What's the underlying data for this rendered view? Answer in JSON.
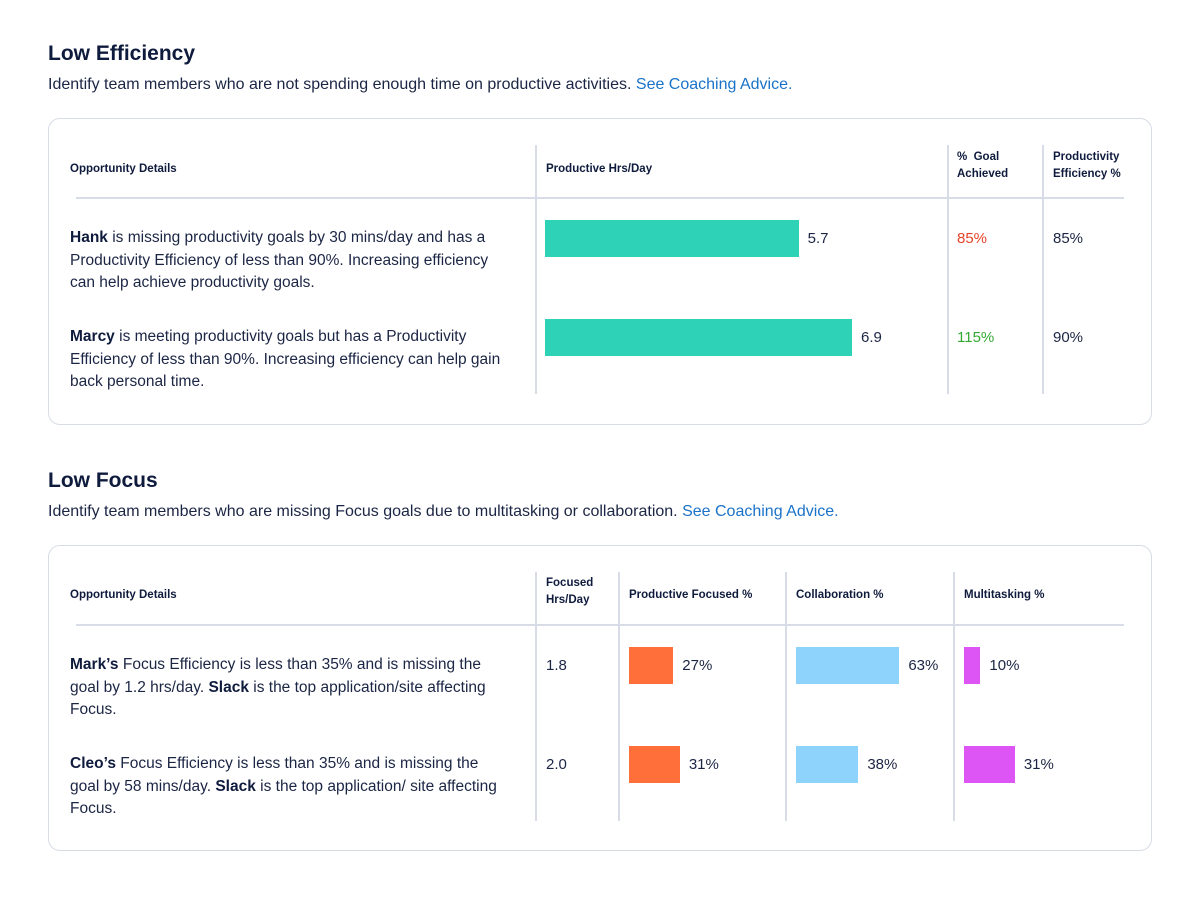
{
  "efficiency": {
    "title": "Low Efficiency",
    "description": "Identify team members who are not spending enough time on productive activities.",
    "link": "See Coaching Advice.",
    "headers": {
      "details": "Opportunity Details",
      "productive": "Productive Hrs/Day",
      "goal_line1": "%  Goal",
      "goal_line2": "Achieved",
      "eff_line1": "Productivity",
      "eff_line2": "Efficiency %"
    },
    "rows": [
      {
        "name": "Hank",
        "text": " is missing productivity goals by 30 mins/day and has a Productivity Efficiency of less than 90%. Increasing efficiency can help achieve productivity goals.",
        "productive_hrs": 5.7,
        "productive_label": "5.7",
        "goal_achieved": "85%",
        "efficiency": "85%"
      },
      {
        "name": "Marcy",
        "text": " is meeting productivity goals but has a Productivity Efficiency of less than 90%. Increasing efficiency can help gain back personal time.",
        "productive_hrs": 6.9,
        "productive_label": "6.9",
        "goal_achieved": "115%",
        "efficiency": "90%"
      }
    ],
    "colors": {
      "bar": "#2ed3b7",
      "under_goal": "#e5432a",
      "over_goal": "#35a833"
    }
  },
  "focus": {
    "title": "Low Focus",
    "description": "Identify team members who are missing Focus goals due to multitasking or collaboration.",
    "link": "See Coaching Advice.",
    "headers": {
      "details": "Opportunity Details",
      "focused_line1": "Focused",
      "focused_line2": "Hrs/Day",
      "productive_focused": "Productive Focused %",
      "collaboration": "Collaboration %",
      "multitasking": "Multitasking %"
    },
    "rows": [
      {
        "name": "Mark’s",
        "text_a": " Focus Efficiency is less than 35% and is missing the goal by 1.2 hrs/day. ",
        "app": "Slack",
        "text_b": " is the top application/site affecting Focus.",
        "focused_hrs": "1.8",
        "productive_focused": 27,
        "productive_focused_label": "27%",
        "collaboration": 63,
        "collaboration_label": "63%",
        "multitasking": 10,
        "multitasking_label": "10%"
      },
      {
        "name": "Cleo’s",
        "text_a": " Focus Efficiency is less than 35% and is missing the goal by 58 mins/day. ",
        "app": "Slack",
        "text_b": " is the top application/ site affecting Focus.",
        "focused_hrs": "2.0",
        "productive_focused": 31,
        "productive_focused_label": "31%",
        "collaboration": 38,
        "collaboration_label": "38%",
        "multitasking": 31,
        "multitasking_label": "31%"
      }
    ],
    "colors": {
      "productive_focused": "#ff6f3a",
      "collaboration": "#8dd3fb",
      "multitasking": "#de55f5"
    }
  }
}
